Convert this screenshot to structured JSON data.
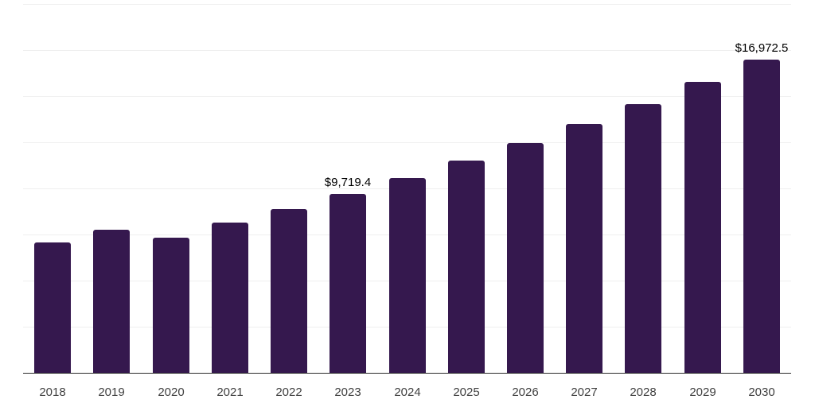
{
  "chart_data": {
    "type": "bar",
    "title": "",
    "xlabel": "",
    "ylabel": "",
    "categories": [
      "2018",
      "2019",
      "2020",
      "2021",
      "2022",
      "2023",
      "2024",
      "2025",
      "2026",
      "2027",
      "2028",
      "2029",
      "2030"
    ],
    "values": [
      7050,
      7760,
      7340,
      8140,
      8880,
      9719.4,
      10580,
      11490,
      12440,
      13480,
      14580,
      15790,
      16972.5
    ],
    "data_labels": {
      "2023": "$9,719.4",
      "2030": "$16,972.5"
    },
    "ylim": [
      0,
      20000
    ],
    "grid_step": 2500,
    "grid": true,
    "legend_position": "none",
    "colors": {
      "bar": "#35184e",
      "gridline": "#efefef",
      "axis_line": "#2b2b2b",
      "tick_label": "#404040",
      "data_label": "#000000",
      "background": "#ffffff"
    }
  }
}
